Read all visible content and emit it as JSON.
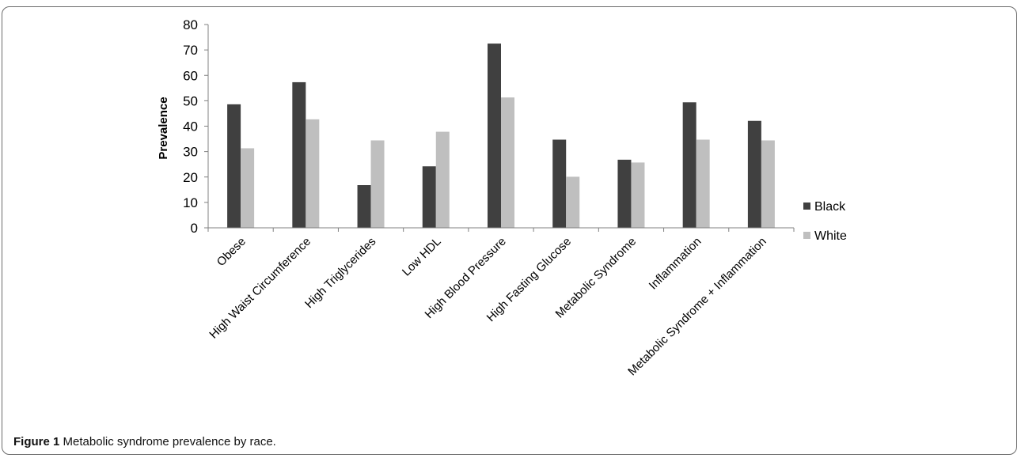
{
  "figure": {
    "label": "Figure 1",
    "caption_text": "Metabolic syndrome prevalence by race."
  },
  "chart_data": {
    "type": "bar",
    "title": "",
    "xlabel": "",
    "ylabel": "Prevalence",
    "ylim": [
      0,
      80
    ],
    "yticks": [
      0,
      10,
      20,
      30,
      40,
      50,
      60,
      70,
      80
    ],
    "categories": [
      "Obese",
      "High Waist Circumference",
      "High Triglycerides",
      "Low HDL",
      "High Blood Pressure",
      "High Fasting Glucose",
      "Metabolic Syndrome",
      "Inflammation",
      "Metabolic Syndrome + Inflammation"
    ],
    "series": [
      {
        "name": "Black",
        "color": "#404040",
        "values": [
          48.6,
          57.3,
          16.8,
          24.2,
          72.5,
          34.7,
          26.8,
          49.4,
          42.1
        ]
      },
      {
        "name": "White",
        "color": "#bfbfbf",
        "values": [
          31.3,
          42.7,
          34.4,
          37.8,
          51.3,
          20.1,
          25.7,
          34.7,
          34.4
        ]
      }
    ],
    "grid": false,
    "legend_position": "right"
  }
}
